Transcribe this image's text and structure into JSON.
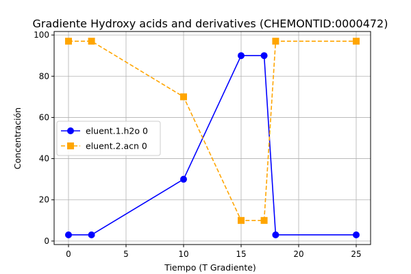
{
  "chart_data": {
    "type": "line",
    "title": "Gradiente Hydroxy acids and derivatives (CHEMONTID:0000472)",
    "xlabel": "Tiempo (T Gradiente)",
    "ylabel": "Concentración",
    "xlim": [
      -1.25,
      26.25
    ],
    "ylim": [
      -1.7,
      101.7
    ],
    "xticks": [
      0,
      5,
      10,
      15,
      20,
      25
    ],
    "yticks": [
      0,
      20,
      40,
      60,
      80,
      100
    ],
    "grid": true,
    "legend_position": "center-left",
    "series": [
      {
        "name": "eluent.1.h2o 0",
        "color": "#0000ff",
        "marker": "circle",
        "linestyle": "solid",
        "x": [
          0,
          2,
          10,
          15,
          17,
          18,
          25
        ],
        "y": [
          3,
          3,
          30,
          90,
          90,
          3,
          3
        ]
      },
      {
        "name": "eluent.2.acn 0",
        "color": "#ffa500",
        "marker": "square",
        "linestyle": "dashed",
        "x": [
          0,
          2,
          10,
          15,
          17,
          18,
          25
        ],
        "y": [
          97,
          97,
          70,
          10,
          10,
          97,
          97
        ]
      }
    ]
  }
}
